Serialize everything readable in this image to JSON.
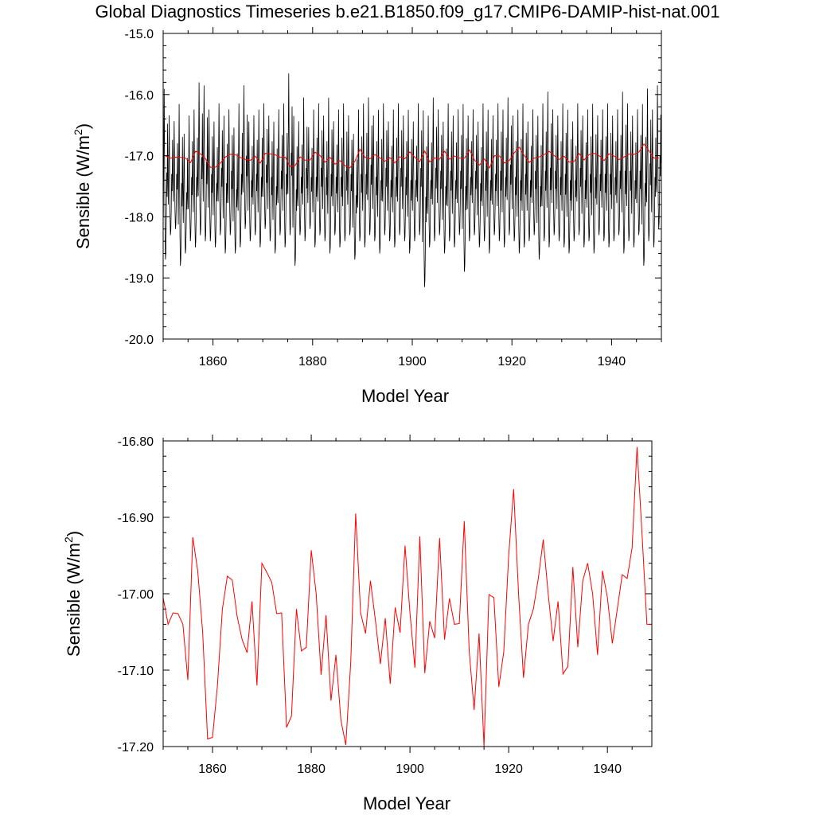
{
  "title": "Global Diagnostics Timeseries b.e21.B1850.f09_g17.CMIP6-DAMIP-hist-nat.001",
  "colors": {
    "monthly": "#000000",
    "annual": "#ff0000",
    "axis": "#000000",
    "background": "#ffffff"
  },
  "chart_data": [
    {
      "type": "line",
      "xlabel": "Model Year",
      "ylabel_prefix": "Sensible (W/m",
      "ylabel_sup": "2",
      "ylabel_suffix": ")",
      "xlim": [
        1850,
        1950
      ],
      "ylim": [
        -20.0,
        -15.0
      ],
      "grid": false,
      "x_ticks": [
        1860,
        1880,
        1900,
        1920,
        1940
      ],
      "y_ticks": [
        -20.0,
        -19.0,
        -18.0,
        -17.0,
        -16.0,
        -15.0
      ],
      "y_tick_labels": [
        "-20.0",
        "-19.0",
        "-18.0",
        "-17.0",
        "-16.0",
        "-15.0"
      ],
      "monthly_series": {
        "start_year": 1850,
        "annual_min": [
          -18.7,
          -18.3,
          -18.2,
          -18.8,
          -18.6,
          -18.4,
          -18.5,
          -18.3,
          -18.4,
          -18.4,
          -18.5,
          -18.3,
          -18.6,
          -18.3,
          -18.6,
          -18.5,
          -18.2,
          -18.4,
          -18.3,
          -18.5,
          -18.2,
          -18.4,
          -18.6,
          -18.3,
          -18.5,
          -18.3,
          -18.8,
          -18.3,
          -18.4,
          -18.2,
          -18.5,
          -18.3,
          -18.4,
          -18.6,
          -18.3,
          -18.5,
          -18.4,
          -18.3,
          -18.7,
          -18.4,
          -18.5,
          -18.3,
          -18.4,
          -18.6,
          -18.3,
          -18.4,
          -18.5,
          -18.3,
          -18.4,
          -18.6,
          -18.4,
          -18.3,
          -19.15,
          -18.5,
          -18.4,
          -18.3,
          -18.6,
          -18.4,
          -18.5,
          -18.3,
          -18.9,
          -18.4,
          -18.3,
          -18.5,
          -18.4,
          -18.6,
          -18.3,
          -18.4,
          -18.5,
          -18.3,
          -18.4,
          -18.6,
          -18.5,
          -18.4,
          -18.3,
          -18.7,
          -18.4,
          -18.5,
          -18.3,
          -18.4,
          -18.5,
          -18.6,
          -18.4,
          -18.3,
          -18.5,
          -18.4,
          -18.6,
          -18.3,
          -18.4,
          -18.5,
          -18.4,
          -18.3,
          -18.6,
          -18.4,
          -18.5,
          -18.3,
          -18.8,
          -18.4,
          -18.5,
          -18.2
        ],
        "annual_max": [
          -15.85,
          -16.3,
          -16.4,
          -16.1,
          -16.6,
          -16.3,
          -16.2,
          -15.75,
          -15.8,
          -16.2,
          -16.4,
          -16.1,
          -16.3,
          -16.2,
          -16.5,
          -16.1,
          -15.8,
          -16.4,
          -16.3,
          -16.2,
          -16.1,
          -16.3,
          -16.4,
          -16.2,
          -16.1,
          -15.6,
          -16.3,
          -16.4,
          -16.0,
          -16.5,
          -16.2,
          -16.1,
          -16.3,
          -16.0,
          -16.4,
          -16.2,
          -16.1,
          -16.3,
          -16.6,
          -16.2,
          -16.1,
          -16.0,
          -16.3,
          -16.2,
          -16.1,
          -16.4,
          -16.2,
          -16.1,
          -16.3,
          -16.2,
          -16.4,
          -16.1,
          -16.2,
          -16.3,
          -16.0,
          -16.2,
          -16.4,
          -16.1,
          -16.3,
          -16.2,
          -16.1,
          -16.3,
          -16.2,
          -16.4,
          -16.1,
          -16.2,
          -16.3,
          -16.1,
          -16.2,
          -16.0,
          -16.3,
          -16.2,
          -16.1,
          -16.4,
          -16.2,
          -16.3,
          -16.1,
          -15.9,
          -16.2,
          -16.3,
          -16.1,
          -16.2,
          -16.4,
          -16.1,
          -16.3,
          -16.2,
          -16.1,
          -16.3,
          -16.2,
          -16.1,
          -16.3,
          -16.2,
          -15.9,
          -16.1,
          -16.3,
          -16.2,
          -16.1,
          -15.85,
          -16.2,
          -15.8
        ]
      },
      "annual_series": {
        "x": [
          1850,
          1851,
          1852,
          1853,
          1854,
          1855,
          1856,
          1857,
          1858,
          1859,
          1860,
          1861,
          1862,
          1863,
          1864,
          1865,
          1866,
          1867,
          1868,
          1869,
          1870,
          1871,
          1872,
          1873,
          1874,
          1875,
          1876,
          1877,
          1878,
          1879,
          1880,
          1881,
          1882,
          1883,
          1884,
          1885,
          1886,
          1887,
          1888,
          1889,
          1890,
          1891,
          1892,
          1893,
          1894,
          1895,
          1896,
          1897,
          1898,
          1899,
          1900,
          1901,
          1902,
          1903,
          1904,
          1905,
          1906,
          1907,
          1908,
          1909,
          1910,
          1911,
          1912,
          1913,
          1914,
          1915,
          1916,
          1917,
          1918,
          1919,
          1920,
          1921,
          1922,
          1923,
          1924,
          1925,
          1926,
          1927,
          1928,
          1929,
          1930,
          1931,
          1932,
          1933,
          1934,
          1935,
          1936,
          1937,
          1938,
          1939,
          1940,
          1941,
          1942,
          1943,
          1944,
          1945,
          1946,
          1947,
          1948,
          1949
        ],
        "values": [
          -17.005,
          -17.04,
          -17.025,
          -17.026,
          -17.04,
          -17.113,
          -16.926,
          -16.97,
          -17.05,
          -17.19,
          -17.188,
          -17.12,
          -17.02,
          -16.977,
          -16.982,
          -17.03,
          -17.06,
          -17.077,
          -17.01,
          -17.12,
          -16.96,
          -16.972,
          -16.985,
          -17.026,
          -17.025,
          -17.175,
          -17.16,
          -17.02,
          -17.075,
          -17.07,
          -16.943,
          -17.0,
          -17.106,
          -17.028,
          -17.14,
          -17.08,
          -17.165,
          -17.198,
          -17.09,
          -16.895,
          -17.025,
          -17.052,
          -16.983,
          -17.035,
          -17.092,
          -17.032,
          -17.118,
          -17.018,
          -17.051,
          -16.937,
          -17.025,
          -17.097,
          -16.925,
          -17.104,
          -17.036,
          -17.058,
          -16.927,
          -17.06,
          -17.006,
          -17.04,
          -17.039,
          -16.905,
          -17.075,
          -17.152,
          -17.052,
          -17.2,
          -17.001,
          -17.005,
          -17.122,
          -17.076,
          -16.95,
          -16.863,
          -17.0,
          -17.11,
          -17.04,
          -17.02,
          -16.98,
          -16.929,
          -17.0,
          -17.062,
          -17.01,
          -17.105,
          -17.095,
          -16.965,
          -17.07,
          -16.983,
          -16.96,
          -17.0,
          -17.08,
          -16.97,
          -17.005,
          -17.065,
          -17.02,
          -16.975,
          -16.98,
          -16.94,
          -16.808,
          -16.92,
          -17.04,
          -17.04
        ]
      }
    },
    {
      "type": "line",
      "xlabel": "Model Year",
      "ylabel_prefix": "Sensible (W/m",
      "ylabel_sup": "2",
      "ylabel_suffix": ")",
      "xlim": [
        1850,
        1949
      ],
      "ylim": [
        -17.2,
        -16.8
      ],
      "grid": false,
      "x_ticks": [
        1860,
        1880,
        1900,
        1920,
        1940
      ],
      "y_ticks": [
        -17.2,
        -17.1,
        -17.0,
        -16.9,
        -16.8
      ],
      "y_tick_labels": [
        "-17.20",
        "-17.10",
        "-17.00",
        "-16.90",
        "-16.80"
      ],
      "series_ref": "annual_series"
    }
  ]
}
